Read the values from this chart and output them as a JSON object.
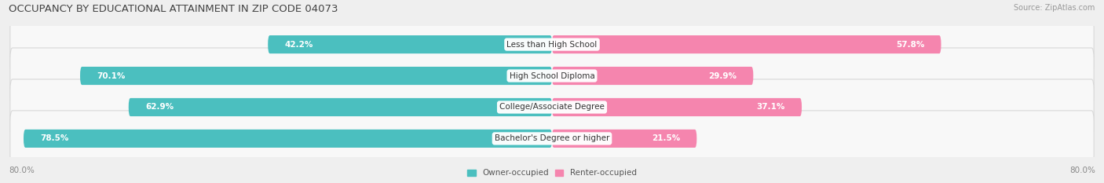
{
  "title": "OCCUPANCY BY EDUCATIONAL ATTAINMENT IN ZIP CODE 04073",
  "source": "Source: ZipAtlas.com",
  "categories": [
    "Less than High School",
    "High School Diploma",
    "College/Associate Degree",
    "Bachelor's Degree or higher"
  ],
  "owner_values": [
    42.2,
    70.1,
    62.9,
    78.5
  ],
  "renter_values": [
    57.8,
    29.9,
    37.1,
    21.5
  ],
  "owner_color": "#4bbfbf",
  "renter_color": "#f585ae",
  "background_color": "#efefef",
  "bar_bg_color": "#ffffff",
  "bar_bg_outline": "#e0e0e0",
  "title_fontsize": 9.5,
  "source_fontsize": 7,
  "label_fontsize": 7.5,
  "pct_fontsize": 7.5,
  "axis_max": 80.0,
  "legend_owner": "Owner-occupied",
  "legend_renter": "Renter-occupied"
}
